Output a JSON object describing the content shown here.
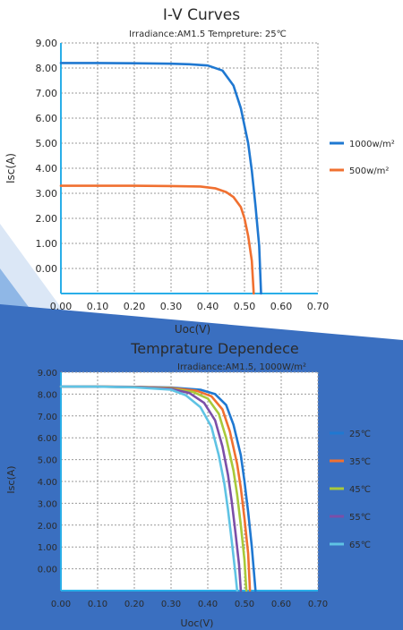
{
  "colors": {
    "background_blue_dark": "#3a6fc0",
    "background_blue_light": "#8fb7e6",
    "axis": "#29aee8",
    "grid": "#9a9a9a",
    "text": "#2b2b2b"
  },
  "chart_data": [
    {
      "type": "line",
      "title": "I-V Curves",
      "subtitle": "Irradiance:AM1.5   Tempreture: 25℃",
      "xlabel": "Uoc(V)",
      "ylabel": "Isc(A)",
      "xlim": [
        0,
        0.7
      ],
      "ylim": [
        -1,
        9
      ],
      "x_ticks": [
        "0.00",
        "0.10",
        "0.20",
        "0.30",
        "0.40",
        "0.50",
        "0.60",
        "0.70"
      ],
      "y_ticks": [
        "0.00",
        "1.00",
        "2.00",
        "3.00",
        "4.00",
        "5.00",
        "6.00",
        "7.00",
        "8.00",
        "9.00"
      ],
      "grid": true,
      "legend_position": "right",
      "series": [
        {
          "name": "1000w/m²",
          "color": "#1f78d1",
          "points": [
            [
              0,
              8.2
            ],
            [
              0.1,
              8.2
            ],
            [
              0.2,
              8.19
            ],
            [
              0.3,
              8.17
            ],
            [
              0.35,
              8.15
            ],
            [
              0.4,
              8.1
            ],
            [
              0.44,
              7.9
            ],
            [
              0.47,
              7.3
            ],
            [
              0.49,
              6.4
            ],
            [
              0.51,
              5.0
            ],
            [
              0.52,
              3.9
            ],
            [
              0.53,
              2.5
            ],
            [
              0.54,
              0.9
            ],
            [
              0.545,
              -1.0
            ]
          ]
        },
        {
          "name": "500w/m²",
          "color": "#f07030",
          "points": [
            [
              0,
              3.3
            ],
            [
              0.1,
              3.3
            ],
            [
              0.2,
              3.3
            ],
            [
              0.3,
              3.29
            ],
            [
              0.38,
              3.27
            ],
            [
              0.42,
              3.2
            ],
            [
              0.45,
              3.05
            ],
            [
              0.47,
              2.85
            ],
            [
              0.49,
              2.45
            ],
            [
              0.5,
              2.0
            ],
            [
              0.51,
              1.3
            ],
            [
              0.52,
              0.3
            ],
            [
              0.525,
              -1.0
            ]
          ]
        }
      ]
    },
    {
      "type": "line",
      "title": "Temprature Dependece",
      "subtitle": "Irradiance:AM1.5,   1000W/m²",
      "xlabel": "Uoc(V)",
      "ylabel": "Isc(A)",
      "xlim": [
        0,
        0.7
      ],
      "ylim": [
        -1,
        9
      ],
      "x_ticks": [
        "0.00",
        "0.10",
        "0.20",
        "0.30",
        "0.40",
        "0.50",
        "0.60",
        "0.70"
      ],
      "y_ticks": [
        "0.00",
        "1.00",
        "2.00",
        "3.00",
        "4.00",
        "5.00",
        "6.00",
        "7.00",
        "8.00",
        "9.00"
      ],
      "grid": true,
      "legend_position": "right",
      "series": [
        {
          "name": "25℃",
          "color": "#1f78d1",
          "points": [
            [
              0,
              8.35
            ],
            [
              0.1,
              8.34
            ],
            [
              0.2,
              8.33
            ],
            [
              0.3,
              8.3
            ],
            [
              0.38,
              8.2
            ],
            [
              0.42,
              8.0
            ],
            [
              0.45,
              7.5
            ],
            [
              0.47,
              6.6
            ],
            [
              0.49,
              5.2
            ],
            [
              0.5,
              4.0
            ],
            [
              0.51,
              2.6
            ],
            [
              0.52,
              1.0
            ],
            [
              0.53,
              -1.0
            ]
          ]
        },
        {
          "name": "35℃",
          "color": "#f07030",
          "points": [
            [
              0,
              8.35
            ],
            [
              0.1,
              8.34
            ],
            [
              0.2,
              8.33
            ],
            [
              0.3,
              8.28
            ],
            [
              0.37,
              8.15
            ],
            [
              0.41,
              7.9
            ],
            [
              0.44,
              7.3
            ],
            [
              0.46,
              6.3
            ],
            [
              0.48,
              4.8
            ],
            [
              0.49,
              3.7
            ],
            [
              0.5,
              2.3
            ],
            [
              0.51,
              0.7
            ],
            [
              0.515,
              -1.0
            ]
          ]
        },
        {
          "name": "45℃",
          "color": "#a8c93a",
          "points": [
            [
              0,
              8.35
            ],
            [
              0.1,
              8.34
            ],
            [
              0.2,
              8.32
            ],
            [
              0.3,
              8.26
            ],
            [
              0.36,
              8.1
            ],
            [
              0.4,
              7.8
            ],
            [
              0.43,
              7.1
            ],
            [
              0.45,
              6.0
            ],
            [
              0.47,
              4.5
            ],
            [
              0.48,
              3.4
            ],
            [
              0.49,
              2.0
            ],
            [
              0.5,
              0.4
            ],
            [
              0.505,
              -1.0
            ]
          ]
        },
        {
          "name": "55℃",
          "color": "#7b4fa8",
          "points": [
            [
              0,
              8.35
            ],
            [
              0.1,
              8.34
            ],
            [
              0.2,
              8.32
            ],
            [
              0.3,
              8.24
            ],
            [
              0.35,
              8.05
            ],
            [
              0.39,
              7.6
            ],
            [
              0.42,
              6.8
            ],
            [
              0.44,
              5.6
            ],
            [
              0.455,
              4.3
            ],
            [
              0.465,
              3.1
            ],
            [
              0.475,
              1.7
            ],
            [
              0.485,
              0.2
            ],
            [
              0.49,
              -1.0
            ]
          ]
        },
        {
          "name": "65℃",
          "color": "#5fc3e4",
          "points": [
            [
              0,
              8.35
            ],
            [
              0.1,
              8.34
            ],
            [
              0.2,
              8.31
            ],
            [
              0.3,
              8.2
            ],
            [
              0.34,
              7.95
            ],
            [
              0.38,
              7.4
            ],
            [
              0.41,
              6.5
            ],
            [
              0.43,
              5.2
            ],
            [
              0.445,
              3.9
            ],
            [
              0.455,
              2.7
            ],
            [
              0.465,
              1.3
            ],
            [
              0.475,
              -0.2
            ],
            [
              0.48,
              -1.0
            ]
          ]
        }
      ]
    }
  ]
}
